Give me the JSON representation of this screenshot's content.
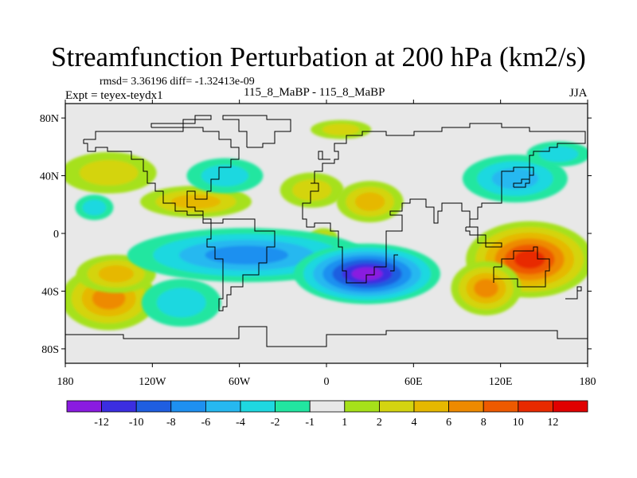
{
  "title": "Streamfunction Perturbation at 200 hPa (km2/s)",
  "stats": "rmsd= 3.36196 diff= -1.32413e-09",
  "experiment": "Expt = teyex-teydx1",
  "period": "115_8_MaBP - 115_8_MaBP",
  "season": "JJA",
  "map": {
    "projection": "cylindrical equidistant",
    "lon_range": [
      -180,
      180
    ],
    "lat_range": [
      -90,
      90
    ],
    "lat_ticks": [
      {
        "value": 80,
        "label": "80N"
      },
      {
        "value": 40,
        "label": "40N"
      },
      {
        "value": 0,
        "label": "0"
      },
      {
        "value": -40,
        "label": "40S"
      },
      {
        "value": -80,
        "label": "80S"
      }
    ],
    "lon_ticks": [
      {
        "value": -180,
        "label": "180"
      },
      {
        "value": -120,
        "label": "120W"
      },
      {
        "value": -60,
        "label": "60W"
      },
      {
        "value": 0,
        "label": "0"
      },
      {
        "value": 60,
        "label": "60E"
      },
      {
        "value": 120,
        "label": "120E"
      },
      {
        "value": 180,
        "label": "180"
      }
    ]
  },
  "colorbar": {
    "labels": [
      "-12",
      "-10",
      "-8",
      "-6",
      "-4",
      "-2",
      "-1",
      "1",
      "2",
      "4",
      "6",
      "8",
      "10",
      "12"
    ],
    "colors": [
      "#8a1be0",
      "#3b2ee0",
      "#1f5ee0",
      "#1e90f0",
      "#26b8f0",
      "#1fd8e0",
      "#22e6a0",
      "#e8e8e8",
      "#a6e11a",
      "#d4d410",
      "#e6b800",
      "#ee8a00",
      "#ee5a00",
      "#e82a00",
      "#e00000"
    ]
  },
  "field_levels": [
    {
      "value": -12,
      "color": "#8a1be0"
    },
    {
      "value": -10,
      "color": "#3b2ee0"
    },
    {
      "value": -8,
      "color": "#1f5ee0"
    },
    {
      "value": -6,
      "color": "#1e90f0"
    },
    {
      "value": -4,
      "color": "#26b8f0"
    },
    {
      "value": -2,
      "color": "#1fd8e0"
    },
    {
      "value": -1,
      "color": "#22e6a0"
    },
    {
      "value": 1,
      "color": "#a6e11a"
    },
    {
      "value": 2,
      "color": "#d4d410"
    },
    {
      "value": 4,
      "color": "#e6b800"
    },
    {
      "value": 6,
      "color": "#ee8a00"
    },
    {
      "value": 8,
      "color": "#ee5a00"
    },
    {
      "value": 10,
      "color": "#e82a00"
    },
    {
      "value": 12,
      "color": "#e00000"
    }
  ],
  "field_features": [
    {
      "name": "nw-pacific-positive",
      "lon": -150,
      "lat": 42,
      "value": 3
    },
    {
      "name": "n-pacific-positive",
      "lon": -90,
      "lat": 22,
      "value": 4
    },
    {
      "name": "n-atlantic-positive",
      "lon": -10,
      "lat": 30,
      "value": 3
    },
    {
      "name": "n-africa-positive",
      "lon": 30,
      "lat": 22,
      "value": 4
    },
    {
      "name": "arctic-positive",
      "lon": 10,
      "lat": 72,
      "value": 2
    },
    {
      "name": "equatorial-small-positive",
      "lon": -2,
      "lat": -3,
      "value": 2.5
    },
    {
      "name": "sw-pacific-positive",
      "lon": -150,
      "lat": -45,
      "value": 6
    },
    {
      "name": "s-pacific-positive",
      "lon": -145,
      "lat": -28,
      "value": 4
    },
    {
      "name": "australia-positive",
      "lon": 140,
      "lat": -18,
      "value": 11
    },
    {
      "name": "s-indian-positive",
      "lon": 110,
      "lat": -38,
      "value": 6
    },
    {
      "name": "pacific-tropical-negative",
      "lon": -55,
      "lat": -15,
      "value": -7
    },
    {
      "name": "africa-tropical-negative",
      "lon": 28,
      "lat": -28,
      "value": -12
    },
    {
      "name": "e-pacific-negative",
      "lon": -100,
      "lat": -48,
      "value": -3
    },
    {
      "name": "n-pacific-negative",
      "lon": -70,
      "lat": 40,
      "value": -2
    },
    {
      "name": "asia-negative",
      "lon": 130,
      "lat": 38,
      "value": -4
    },
    {
      "name": "n-america-negative",
      "lon": -160,
      "lat": 18,
      "value": -2
    },
    {
      "name": "arctic-asia-negative",
      "lon": 160,
      "lat": 55,
      "value": -2
    }
  ]
}
